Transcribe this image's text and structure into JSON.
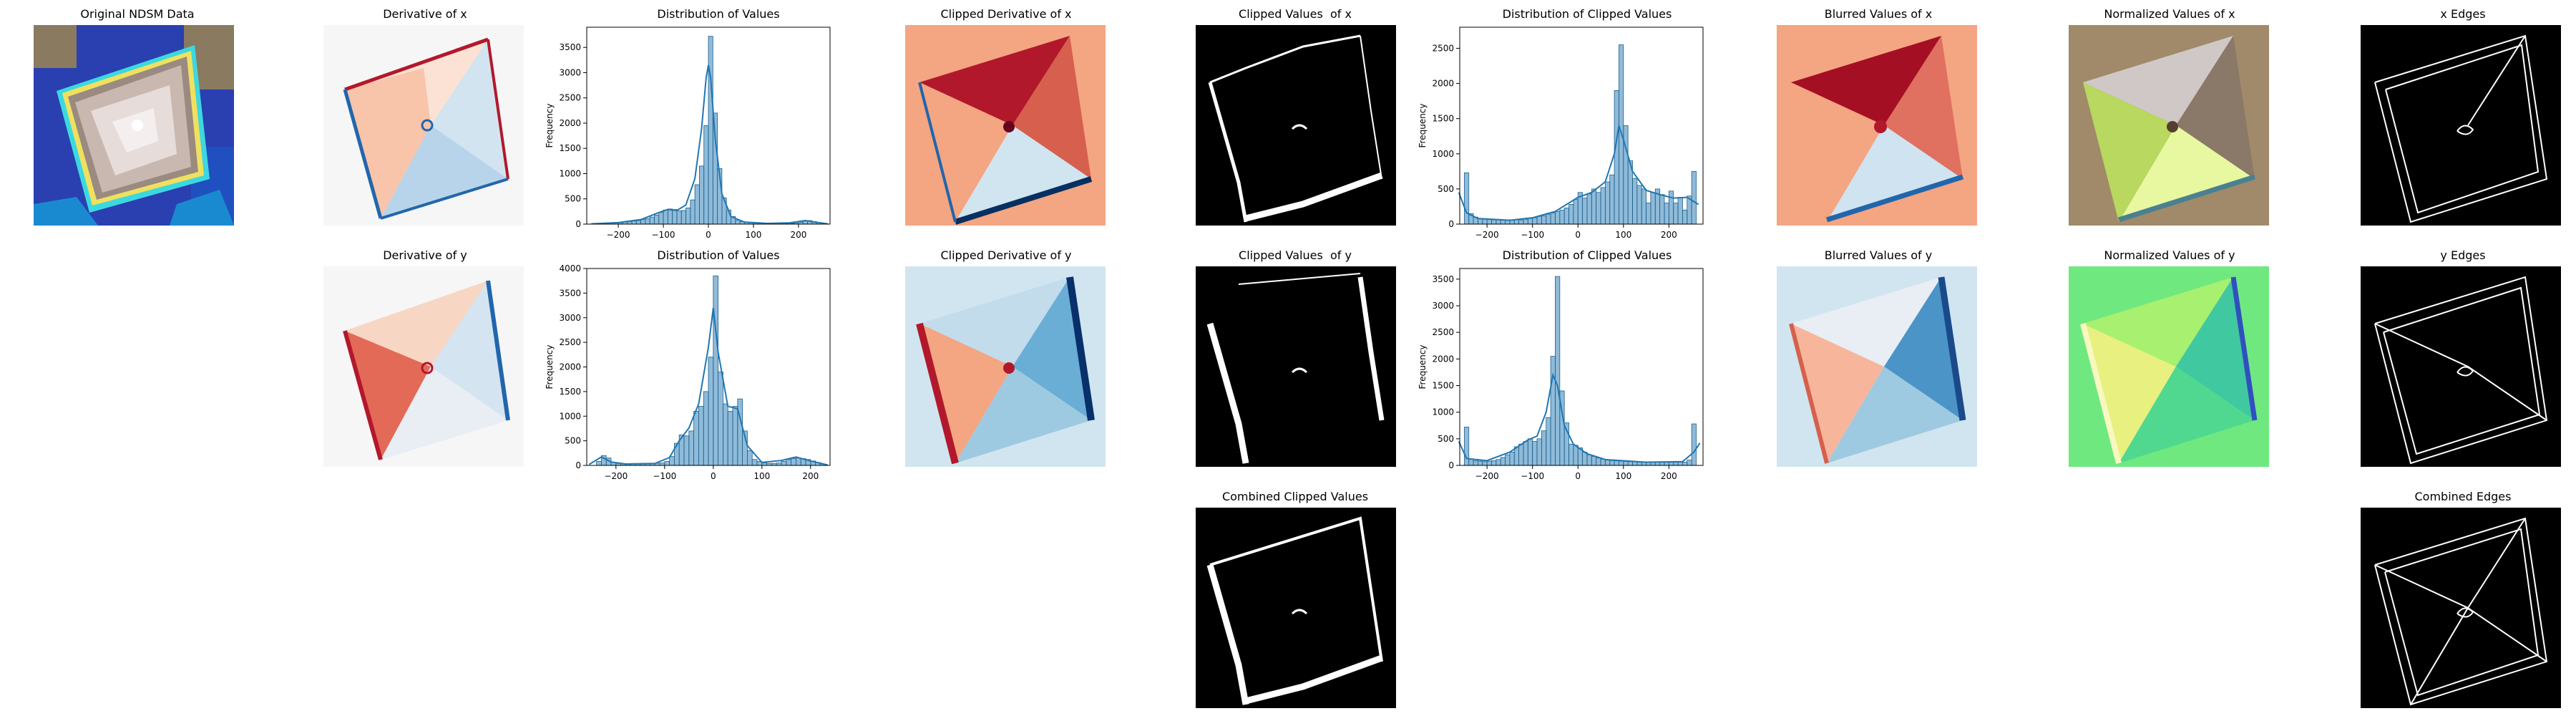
{
  "titles": {
    "original": "Original NDSM Data",
    "deriv_x": "Derivative of x",
    "dist_x": "Distribution of Values",
    "clipdiv_x": "Clipped Derivative of x",
    "clipval_x": "Clipped Values  of x",
    "dist_clip_x": "Distribution of Clipped Values",
    "blur_x": "Blurred Values of x",
    "norm_x": "Normalized Values of x",
    "edges_x": "x Edges",
    "deriv_y": "Derivative of y",
    "dist_y": "Distribution of Values",
    "clipdiv_y": "Clipped Derivative of y",
    "clipval_y": "Clipped Values  of y",
    "dist_clip_y": "Distribution of Clipped Values",
    "blur_y": "Blurred Values of y",
    "norm_y": "Normalized Values of y",
    "edges_y": "y Edges",
    "combined_clip": "Combined Clipped Values",
    "combined_edges": "Combined Edges"
  },
  "chart_data": [
    {
      "id": "dist_x",
      "type": "bar",
      "title": "Distribution of Values",
      "ylabel": "Frequency",
      "xlim": [
        -270,
        270
      ],
      "ylim": [
        0,
        3900
      ],
      "xticks": [
        -200,
        -100,
        0,
        100,
        200
      ],
      "yticks": [
        0,
        500,
        1000,
        1500,
        2000,
        2500,
        3000,
        3500
      ],
      "bin_width": 10,
      "bins": [
        [
          -250,
          5
        ],
        [
          -240,
          10
        ],
        [
          -230,
          15
        ],
        [
          -220,
          20
        ],
        [
          -210,
          25
        ],
        [
          -200,
          30
        ],
        [
          -190,
          40
        ],
        [
          -180,
          50
        ],
        [
          -170,
          60
        ],
        [
          -160,
          70
        ],
        [
          -150,
          90
        ],
        [
          -140,
          110
        ],
        [
          -130,
          140
        ],
        [
          -120,
          180
        ],
        [
          -110,
          230
        ],
        [
          -100,
          280
        ],
        [
          -90,
          300
        ],
        [
          -80,
          290
        ],
        [
          -70,
          260
        ],
        [
          -60,
          270
        ],
        [
          -50,
          320
        ],
        [
          -40,
          480
        ],
        [
          -30,
          780
        ],
        [
          -20,
          1150
        ],
        [
          -10,
          1950
        ],
        [
          0,
          3720
        ],
        [
          10,
          2200
        ],
        [
          20,
          1100
        ],
        [
          30,
          520
        ],
        [
          40,
          280
        ],
        [
          50,
          150
        ],
        [
          60,
          80
        ],
        [
          70,
          50
        ],
        [
          80,
          40
        ],
        [
          90,
          30
        ],
        [
          100,
          25
        ],
        [
          110,
          20
        ],
        [
          120,
          15
        ],
        [
          130,
          10
        ],
        [
          140,
          10
        ],
        [
          150,
          10
        ],
        [
          160,
          10
        ],
        [
          170,
          10
        ],
        [
          180,
          15
        ],
        [
          190,
          20
        ],
        [
          200,
          40
        ],
        [
          210,
          60
        ],
        [
          220,
          70
        ],
        [
          230,
          50
        ],
        [
          240,
          30
        ],
        [
          250,
          15
        ]
      ],
      "kde": [
        [
          -260,
          5
        ],
        [
          -200,
          30
        ],
        [
          -150,
          90
        ],
        [
          -110,
          230
        ],
        [
          -90,
          290
        ],
        [
          -70,
          270
        ],
        [
          -50,
          380
        ],
        [
          -30,
          900
        ],
        [
          -15,
          1900
        ],
        [
          -5,
          2900
        ],
        [
          0,
          3150
        ],
        [
          5,
          2900
        ],
        [
          15,
          1700
        ],
        [
          30,
          600
        ],
        [
          50,
          150
        ],
        [
          80,
          40
        ],
        [
          130,
          15
        ],
        [
          180,
          25
        ],
        [
          215,
          70
        ],
        [
          240,
          35
        ],
        [
          265,
          5
        ]
      ]
    },
    {
      "id": "dist_y",
      "type": "bar",
      "title": "Distribution of Values",
      "ylabel": "Frequency",
      "xlim": [
        -260,
        240
      ],
      "ylim": [
        0,
        4000
      ],
      "xticks": [
        -200,
        -100,
        0,
        100,
        200
      ],
      "yticks": [
        0,
        500,
        1000,
        1500,
        2000,
        2500,
        3000,
        3500,
        4000
      ],
      "bin_width": 10,
      "bins": [
        [
          -240,
          80
        ],
        [
          -230,
          200
        ],
        [
          -220,
          150
        ],
        [
          -210,
          60
        ],
        [
          -200,
          40
        ],
        [
          -190,
          30
        ],
        [
          -180,
          30
        ],
        [
          -170,
          30
        ],
        [
          -160,
          35
        ],
        [
          -150,
          40
        ],
        [
          -140,
          40
        ],
        [
          -130,
          40
        ],
        [
          -120,
          45
        ],
        [
          -110,
          50
        ],
        [
          -100,
          80
        ],
        [
          -90,
          180
        ],
        [
          -80,
          450
        ],
        [
          -70,
          620
        ],
        [
          -60,
          600
        ],
        [
          -50,
          700
        ],
        [
          -40,
          1100
        ],
        [
          -30,
          1200
        ],
        [
          -20,
          1500
        ],
        [
          -10,
          2200
        ],
        [
          0,
          3850
        ],
        [
          10,
          1900
        ],
        [
          20,
          1250
        ],
        [
          30,
          1100
        ],
        [
          40,
          1200
        ],
        [
          50,
          1350
        ],
        [
          60,
          700
        ],
        [
          70,
          300
        ],
        [
          80,
          120
        ],
        [
          90,
          80
        ],
        [
          100,
          50
        ],
        [
          110,
          40
        ],
        [
          120,
          40
        ],
        [
          130,
          50
        ],
        [
          140,
          80
        ],
        [
          150,
          120
        ],
        [
          160,
          140
        ],
        [
          170,
          150
        ],
        [
          180,
          140
        ],
        [
          190,
          120
        ],
        [
          200,
          90
        ],
        [
          210,
          60
        ],
        [
          220,
          30
        ]
      ],
      "kde": [
        [
          -255,
          20
        ],
        [
          -230,
          170
        ],
        [
          -210,
          70
        ],
        [
          -180,
          30
        ],
        [
          -120,
          40
        ],
        [
          -90,
          160
        ],
        [
          -70,
          500
        ],
        [
          -50,
          760
        ],
        [
          -30,
          1250
        ],
        [
          -10,
          2400
        ],
        [
          0,
          3200
        ],
        [
          10,
          2300
        ],
        [
          30,
          1200
        ],
        [
          50,
          1150
        ],
        [
          70,
          400
        ],
        [
          100,
          60
        ],
        [
          140,
          100
        ],
        [
          170,
          170
        ],
        [
          200,
          90
        ],
        [
          235,
          10
        ]
      ]
    },
    {
      "id": "dist_clip_x",
      "type": "bar",
      "title": "Distribution of Clipped Values",
      "ylabel": "Frequency",
      "xlim": [
        -260,
        275
      ],
      "ylim": [
        0,
        2800
      ],
      "xticks": [
        -200,
        -100,
        0,
        100,
        200
      ],
      "yticks": [
        0,
        500,
        1000,
        1500,
        2000,
        2500
      ],
      "bin_width": 10,
      "bins": [
        [
          -250,
          730
        ],
        [
          -240,
          150
        ],
        [
          -230,
          100
        ],
        [
          -220,
          80
        ],
        [
          -210,
          70
        ],
        [
          -200,
          65
        ],
        [
          -190,
          60
        ],
        [
          -180,
          60
        ],
        [
          -170,
          60
        ],
        [
          -160,
          60
        ],
        [
          -150,
          60
        ],
        [
          -140,
          60
        ],
        [
          -130,
          60
        ],
        [
          -120,
          70
        ],
        [
          -110,
          80
        ],
        [
          -100,
          90
        ],
        [
          -90,
          110
        ],
        [
          -80,
          120
        ],
        [
          -70,
          140
        ],
        [
          -60,
          160
        ],
        [
          -50,
          180
        ],
        [
          -40,
          200
        ],
        [
          -30,
          230
        ],
        [
          -20,
          280
        ],
        [
          -10,
          350
        ],
        [
          0,
          450
        ],
        [
          10,
          370
        ],
        [
          20,
          430
        ],
        [
          30,
          500
        ],
        [
          40,
          450
        ],
        [
          50,
          520
        ],
        [
          60,
          600
        ],
        [
          70,
          700
        ],
        [
          80,
          1900
        ],
        [
          90,
          2550
        ],
        [
          100,
          1400
        ],
        [
          110,
          900
        ],
        [
          120,
          650
        ],
        [
          130,
          550
        ],
        [
          140,
          500
        ],
        [
          150,
          300
        ],
        [
          160,
          450
        ],
        [
          170,
          500
        ],
        [
          180,
          420
        ],
        [
          190,
          300
        ],
        [
          200,
          470
        ],
        [
          210,
          300
        ],
        [
          220,
          380
        ],
        [
          230,
          200
        ],
        [
          240,
          400
        ],
        [
          250,
          750
        ]
      ],
      "kde": [
        [
          -262,
          450
        ],
        [
          -245,
          160
        ],
        [
          -220,
          80
        ],
        [
          -150,
          55
        ],
        [
          -100,
          90
        ],
        [
          -50,
          180
        ],
        [
          0,
          380
        ],
        [
          30,
          450
        ],
        [
          60,
          600
        ],
        [
          80,
          1000
        ],
        [
          90,
          1400
        ],
        [
          100,
          1200
        ],
        [
          120,
          750
        ],
        [
          150,
          480
        ],
        [
          180,
          420
        ],
        [
          210,
          370
        ],
        [
          240,
          380
        ],
        [
          265,
          280
        ]
      ]
    },
    {
      "id": "dist_clip_y",
      "type": "bar",
      "title": "Distribution of Clipped Values",
      "ylabel": "Frequency",
      "xlim": [
        -260,
        275
      ],
      "ylim": [
        0,
        3700
      ],
      "xticks": [
        -200,
        -100,
        0,
        100,
        200
      ],
      "yticks": [
        0,
        500,
        1000,
        1500,
        2000,
        2500,
        3000,
        3500
      ],
      "bin_width": 10,
      "bins": [
        [
          -250,
          720
        ],
        [
          -240,
          120
        ],
        [
          -230,
          90
        ],
        [
          -220,
          80
        ],
        [
          -210,
          70
        ],
        [
          -200,
          80
        ],
        [
          -190,
          90
        ],
        [
          -180,
          110
        ],
        [
          -170,
          150
        ],
        [
          -160,
          200
        ],
        [
          -150,
          250
        ],
        [
          -140,
          350
        ],
        [
          -130,
          400
        ],
        [
          -120,
          450
        ],
        [
          -110,
          500
        ],
        [
          -100,
          450
        ],
        [
          -90,
          500
        ],
        [
          -80,
          650
        ],
        [
          -70,
          900
        ],
        [
          -60,
          2050
        ],
        [
          -50,
          3550
        ],
        [
          -40,
          1400
        ],
        [
          -30,
          800
        ],
        [
          -20,
          400
        ],
        [
          -10,
          380
        ],
        [
          0,
          330
        ],
        [
          10,
          250
        ],
        [
          20,
          200
        ],
        [
          30,
          170
        ],
        [
          40,
          140
        ],
        [
          50,
          120
        ],
        [
          60,
          100
        ],
        [
          70,
          90
        ],
        [
          80,
          85
        ],
        [
          90,
          80
        ],
        [
          100,
          75
        ],
        [
          110,
          70
        ],
        [
          120,
          65
        ],
        [
          130,
          60
        ],
        [
          140,
          60
        ],
        [
          150,
          60
        ],
        [
          160,
          60
        ],
        [
          170,
          60
        ],
        [
          180,
          60
        ],
        [
          190,
          60
        ],
        [
          200,
          60
        ],
        [
          210,
          60
        ],
        [
          220,
          60
        ],
        [
          230,
          60
        ],
        [
          240,
          100
        ],
        [
          250,
          780
        ]
      ],
      "kde": [
        [
          -262,
          450
        ],
        [
          -245,
          130
        ],
        [
          -200,
          90
        ],
        [
          -150,
          250
        ],
        [
          -110,
          480
        ],
        [
          -90,
          550
        ],
        [
          -70,
          1000
        ],
        [
          -55,
          1700
        ],
        [
          -45,
          1500
        ],
        [
          -30,
          750
        ],
        [
          -10,
          400
        ],
        [
          20,
          220
        ],
        [
          60,
          110
        ],
        [
          150,
          60
        ],
        [
          230,
          70
        ],
        [
          255,
          250
        ],
        [
          268,
          420
        ]
      ]
    }
  ]
}
